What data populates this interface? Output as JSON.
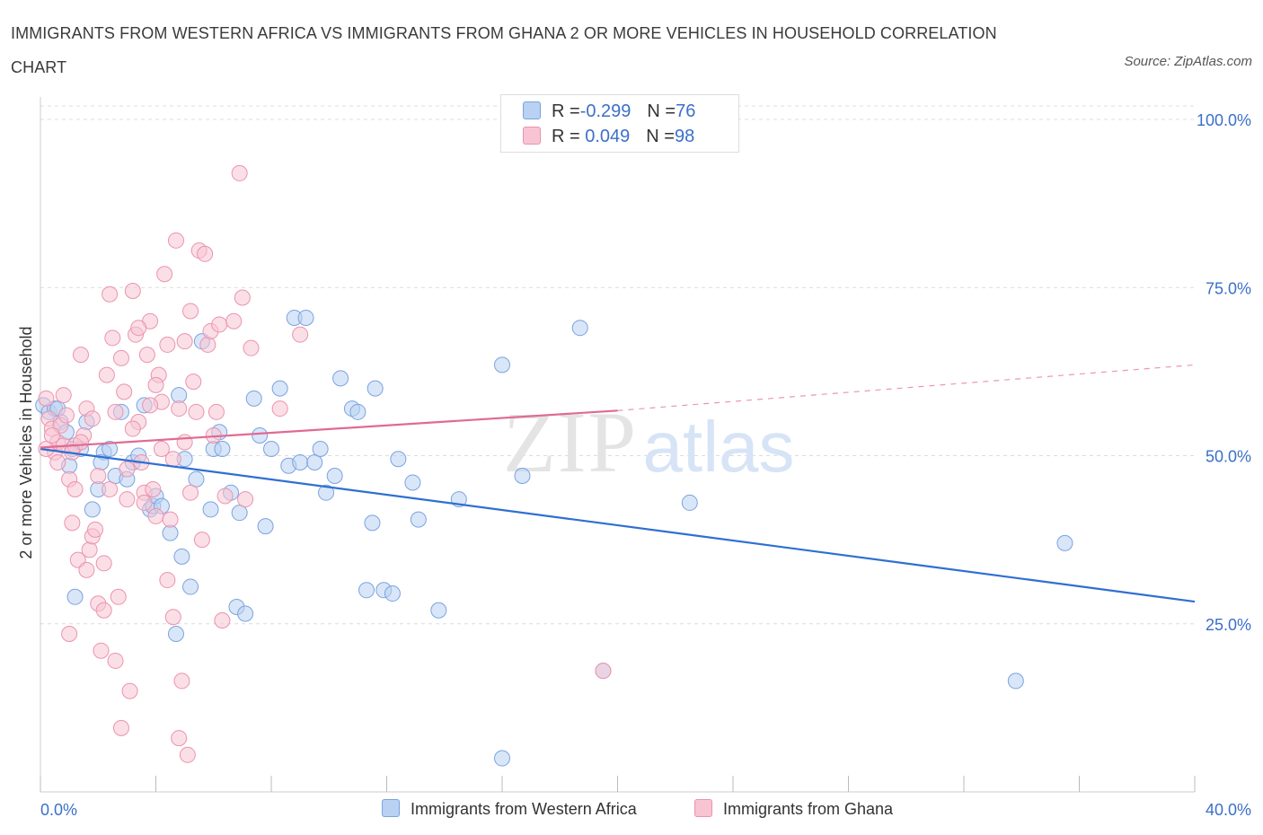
{
  "title": "IMMIGRANTS FROM WESTERN AFRICA VS IMMIGRANTS FROM GHANA 2 OR MORE VEHICLES IN HOUSEHOLD CORRELATION CHART",
  "source": "Source: ZipAtlas.com",
  "watermark": {
    "zip": "ZIP",
    "atlas": "atlas"
  },
  "legend": {
    "rows": [
      {
        "r_label": "R = ",
        "r_value": "-0.299",
        "n_label": "N = ",
        "n_value": "76"
      },
      {
        "r_label": "R = ",
        "r_value": " 0.049",
        "n_label": "N = ",
        "n_value": "98"
      }
    ]
  },
  "colors": {
    "blue_fill": "#b9d1f3",
    "blue_stroke": "#7aa3e0",
    "blue_line": "#2f6fd1",
    "pink_fill": "#f8c4d3",
    "pink_stroke": "#eb93ae",
    "pink_line": "#e06a94",
    "axis_text": "#3b6fc9",
    "grid": "#dcdcdc"
  },
  "chart_data": {
    "type": "scatter",
    "xlabel": "",
    "ylabel": "2 or more Vehicles in Household",
    "xlim": [
      0,
      40
    ],
    "ylim": [
      0,
      100
    ],
    "x_tick_labels": [
      "0.0%",
      "40.0%"
    ],
    "y_tick_labels": [
      "100.0%",
      "75.0%",
      "50.0%",
      "25.0%"
    ],
    "y_ticks": [
      100,
      75,
      50,
      25
    ],
    "grid": true,
    "series": [
      {
        "name": "Immigrants from Western Africa",
        "color": "blue",
        "trend": {
          "x": [
            0,
            40
          ],
          "y": [
            51.0,
            28.3
          ]
        },
        "points": [
          [
            0.1,
            57.5
          ],
          [
            0.3,
            56.5
          ],
          [
            0.5,
            57.0
          ],
          [
            0.7,
            55.0
          ],
          [
            0.9,
            53.5
          ],
          [
            1.0,
            48.5
          ],
          [
            1.2,
            29.0
          ],
          [
            1.4,
            51.0
          ],
          [
            1.6,
            55.0
          ],
          [
            1.8,
            42.0
          ],
          [
            2.0,
            45.0
          ],
          [
            2.2,
            50.5
          ],
          [
            2.4,
            51.0
          ],
          [
            2.6,
            47.0
          ],
          [
            2.8,
            56.5
          ],
          [
            3.0,
            46.5
          ],
          [
            3.2,
            49.0
          ],
          [
            3.4,
            50.0
          ],
          [
            3.6,
            57.5
          ],
          [
            3.8,
            42.0
          ],
          [
            3.9,
            42.5
          ],
          [
            4.0,
            44.0
          ],
          [
            4.2,
            42.5
          ],
          [
            4.5,
            38.5
          ],
          [
            4.7,
            23.5
          ],
          [
            4.8,
            59.0
          ],
          [
            4.9,
            35.0
          ],
          [
            5.0,
            49.5
          ],
          [
            5.2,
            30.5
          ],
          [
            5.4,
            46.5
          ],
          [
            5.6,
            67.0
          ],
          [
            5.9,
            42.0
          ],
          [
            6.0,
            51.0
          ],
          [
            6.2,
            53.5
          ],
          [
            6.3,
            51.0
          ],
          [
            6.6,
            44.5
          ],
          [
            6.8,
            27.5
          ],
          [
            6.9,
            41.5
          ],
          [
            7.1,
            26.5
          ],
          [
            7.4,
            58.5
          ],
          [
            7.6,
            53.0
          ],
          [
            7.8,
            39.5
          ],
          [
            8.0,
            51.0
          ],
          [
            8.3,
            60.0
          ],
          [
            8.6,
            48.5
          ],
          [
            8.8,
            70.5
          ],
          [
            9.0,
            49.0
          ],
          [
            9.2,
            70.5
          ],
          [
            9.5,
            49.0
          ],
          [
            9.7,
            51.0
          ],
          [
            9.9,
            44.5
          ],
          [
            10.2,
            47.0
          ],
          [
            10.4,
            61.5
          ],
          [
            10.8,
            57.0
          ],
          [
            11.0,
            56.5
          ],
          [
            11.3,
            30.0
          ],
          [
            11.5,
            40.0
          ],
          [
            11.6,
            60.0
          ],
          [
            11.9,
            30.0
          ],
          [
            12.2,
            29.5
          ],
          [
            12.4,
            49.5
          ],
          [
            12.9,
            46.0
          ],
          [
            13.1,
            40.5
          ],
          [
            13.8,
            27.0
          ],
          [
            14.5,
            43.5
          ],
          [
            16.0,
            5.0
          ],
          [
            16.0,
            63.5
          ],
          [
            16.7,
            47.0
          ],
          [
            18.7,
            69.0
          ],
          [
            19.5,
            18.0
          ],
          [
            22.5,
            43.0
          ],
          [
            35.5,
            37.0
          ],
          [
            33.8,
            16.5
          ],
          [
            0.6,
            57.0
          ],
          [
            1.1,
            51.0
          ],
          [
            2.1,
            49.0
          ]
        ]
      },
      {
        "name": "Immigrants from Ghana",
        "color": "pink",
        "trend": {
          "x": [
            0,
            20
          ],
          "y": [
            51.2,
            56.7
          ]
        },
        "trend_dashed": {
          "x": [
            20,
            40
          ],
          "y": [
            56.7,
            63.5
          ]
        },
        "points": [
          [
            0.2,
            58.5
          ],
          [
            0.3,
            55.5
          ],
          [
            0.4,
            54.0
          ],
          [
            0.5,
            50.5
          ],
          [
            0.6,
            52.0
          ],
          [
            0.7,
            54.5
          ],
          [
            0.8,
            51.5
          ],
          [
            0.9,
            56.0
          ],
          [
            1.0,
            46.5
          ],
          [
            1.1,
            40.0
          ],
          [
            1.2,
            45.0
          ],
          [
            1.3,
            34.5
          ],
          [
            1.4,
            65.0
          ],
          [
            1.5,
            53.0
          ],
          [
            1.6,
            57.0
          ],
          [
            1.7,
            36.0
          ],
          [
            1.8,
            38.0
          ],
          [
            1.9,
            39.0
          ],
          [
            2.0,
            28.0
          ],
          [
            2.1,
            21.0
          ],
          [
            2.2,
            27.0
          ],
          [
            2.3,
            62.0
          ],
          [
            2.4,
            74.0
          ],
          [
            2.5,
            67.5
          ],
          [
            2.6,
            19.5
          ],
          [
            2.7,
            29.0
          ],
          [
            2.8,
            9.5
          ],
          [
            2.9,
            59.5
          ],
          [
            3.0,
            43.5
          ],
          [
            3.1,
            15.0
          ],
          [
            3.2,
            74.5
          ],
          [
            3.3,
            68.0
          ],
          [
            3.4,
            55.0
          ],
          [
            3.5,
            49.0
          ],
          [
            3.6,
            44.5
          ],
          [
            3.7,
            65.0
          ],
          [
            3.8,
            70.0
          ],
          [
            3.9,
            45.0
          ],
          [
            4.0,
            41.0
          ],
          [
            4.1,
            62.0
          ],
          [
            4.2,
            58.0
          ],
          [
            4.3,
            77.0
          ],
          [
            4.4,
            31.5
          ],
          [
            4.5,
            40.5
          ],
          [
            4.6,
            26.0
          ],
          [
            4.7,
            82.0
          ],
          [
            4.8,
            8.0
          ],
          [
            4.9,
            16.5
          ],
          [
            5.0,
            52.0
          ],
          [
            5.1,
            5.5
          ],
          [
            5.2,
            71.5
          ],
          [
            5.3,
            61.0
          ],
          [
            5.4,
            56.5
          ],
          [
            5.5,
            80.5
          ],
          [
            5.6,
            37.5
          ],
          [
            5.7,
            80.0
          ],
          [
            5.8,
            66.5
          ],
          [
            5.9,
            68.5
          ],
          [
            6.0,
            53.0
          ],
          [
            6.1,
            56.5
          ],
          [
            6.2,
            69.5
          ],
          [
            6.3,
            25.5
          ],
          [
            6.4,
            44.0
          ],
          [
            6.7,
            70.0
          ],
          [
            6.9,
            92.0
          ],
          [
            7.0,
            73.5
          ],
          [
            7.1,
            43.5
          ],
          [
            7.3,
            66.0
          ],
          [
            8.3,
            57.0
          ],
          [
            9.0,
            68.0
          ],
          [
            0.2,
            51.0
          ],
          [
            0.4,
            53.0
          ],
          [
            0.6,
            49.0
          ],
          [
            0.8,
            59.0
          ],
          [
            1.0,
            23.5
          ],
          [
            1.2,
            51.5
          ],
          [
            1.4,
            52.0
          ],
          [
            1.6,
            33.0
          ],
          [
            1.8,
            55.5
          ],
          [
            2.0,
            47.0
          ],
          [
            2.2,
            34.0
          ],
          [
            2.4,
            45.0
          ],
          [
            2.6,
            56.5
          ],
          [
            2.8,
            64.5
          ],
          [
            3.0,
            48.0
          ],
          [
            3.2,
            54.0
          ],
          [
            3.4,
            69.0
          ],
          [
            3.6,
            43.0
          ],
          [
            3.8,
            57.5
          ],
          [
            4.0,
            60.5
          ],
          [
            4.2,
            51.0
          ],
          [
            4.4,
            66.5
          ],
          [
            4.6,
            49.5
          ],
          [
            4.8,
            57.0
          ],
          [
            5.0,
            67.0
          ],
          [
            5.2,
            44.5
          ],
          [
            19.5,
            18.0
          ],
          [
            1.1,
            50.5
          ]
        ]
      }
    ]
  }
}
